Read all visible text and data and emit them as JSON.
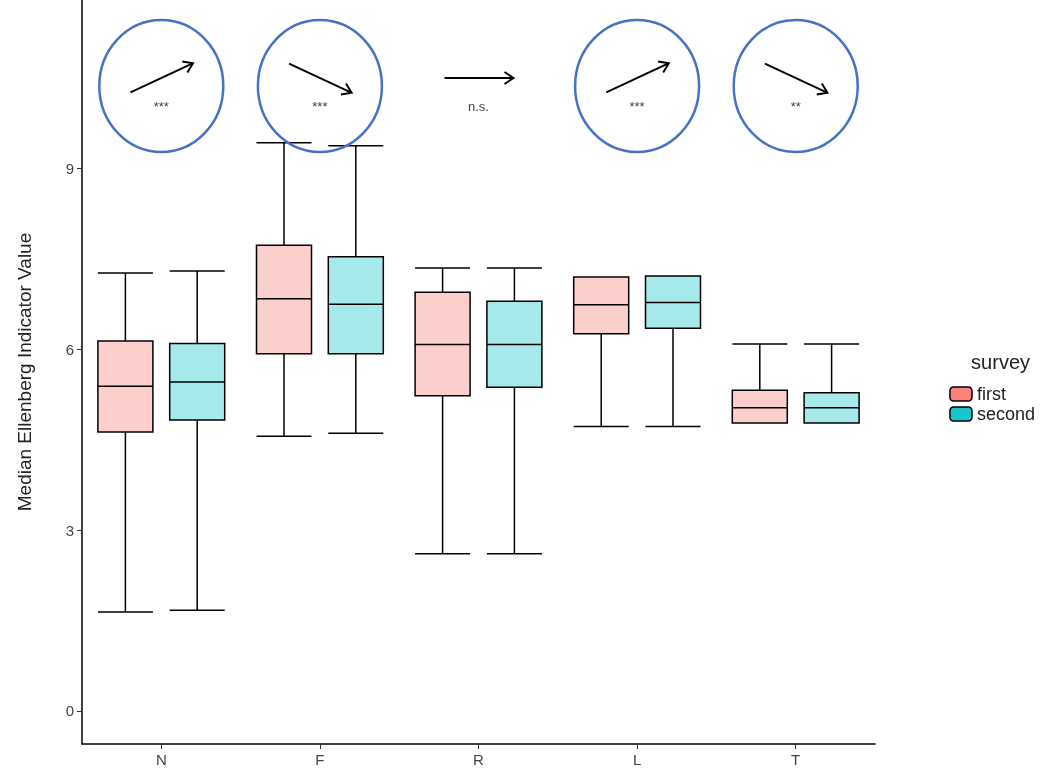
{
  "chart_data": {
    "type": "box",
    "ylabel": "Median Ellenberg Indicator Value",
    "legend_title": "survey",
    "categories": [
      "N",
      "F",
      "R",
      "L",
      "T"
    ],
    "ylim": [
      -0.55,
      11.8
    ],
    "yticks": [
      0,
      3,
      6,
      9
    ],
    "grid": false,
    "legend": "right",
    "series": [
      {
        "name": "first",
        "color": "#f8766d",
        "boxes": [
          {
            "low": 1.64,
            "q1": 4.63,
            "median": 5.39,
            "q3": 6.14,
            "high": 7.27
          },
          {
            "low": 4.56,
            "q1": 5.93,
            "median": 6.84,
            "q3": 7.73,
            "high": 9.43
          },
          {
            "low": 2.61,
            "q1": 5.23,
            "median": 6.08,
            "q3": 6.95,
            "high": 7.35
          },
          {
            "low": 4.72,
            "q1": 6.26,
            "median": 6.74,
            "q3": 7.2,
            "high": 7.2
          },
          {
            "low": 4.78,
            "q1": 4.78,
            "median": 5.03,
            "q3": 5.32,
            "high": 6.09
          }
        ]
      },
      {
        "name": "second",
        "color": "#00bfc4",
        "boxes": [
          {
            "low": 1.67,
            "q1": 4.83,
            "median": 5.46,
            "q3": 6.1,
            "high": 7.3
          },
          {
            "low": 4.61,
            "q1": 5.93,
            "median": 6.75,
            "q3": 7.54,
            "high": 9.38
          },
          {
            "low": 2.61,
            "q1": 5.37,
            "median": 6.08,
            "q3": 6.8,
            "high": 7.35
          },
          {
            "low": 4.72,
            "q1": 6.35,
            "median": 6.78,
            "q3": 7.22,
            "high": 7.22
          },
          {
            "low": 4.78,
            "q1": 4.78,
            "median": 5.03,
            "q3": 5.28,
            "high": 6.09
          }
        ]
      }
    ],
    "annotations": [
      "***",
      "***",
      "n.s.",
      "***",
      "**"
    ]
  }
}
